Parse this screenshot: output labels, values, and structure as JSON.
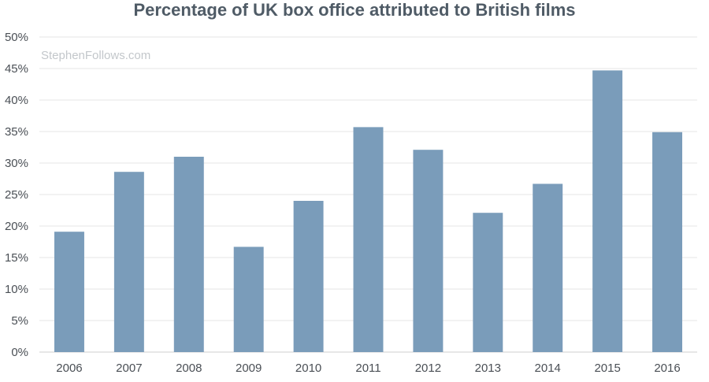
{
  "chart_data": {
    "type": "bar",
    "title": "Percentage of UK box office attributed to British films",
    "watermark": "StephenFollows.com",
    "categories": [
      "2006",
      "2007",
      "2008",
      "2009",
      "2010",
      "2011",
      "2012",
      "2013",
      "2014",
      "2015",
      "2016"
    ],
    "values": [
      19.1,
      28.6,
      31.0,
      16.7,
      24.0,
      35.7,
      32.1,
      22.1,
      26.7,
      44.7,
      34.9
    ],
    "ylim": [
      0,
      50
    ],
    "yticks": [
      "0%",
      "5%",
      "10%",
      "15%",
      "20%",
      "25%",
      "30%",
      "35%",
      "40%",
      "45%",
      "50%"
    ],
    "xlabel": "",
    "ylabel": "",
    "grid": true,
    "bar_color": "#7a9cba"
  }
}
